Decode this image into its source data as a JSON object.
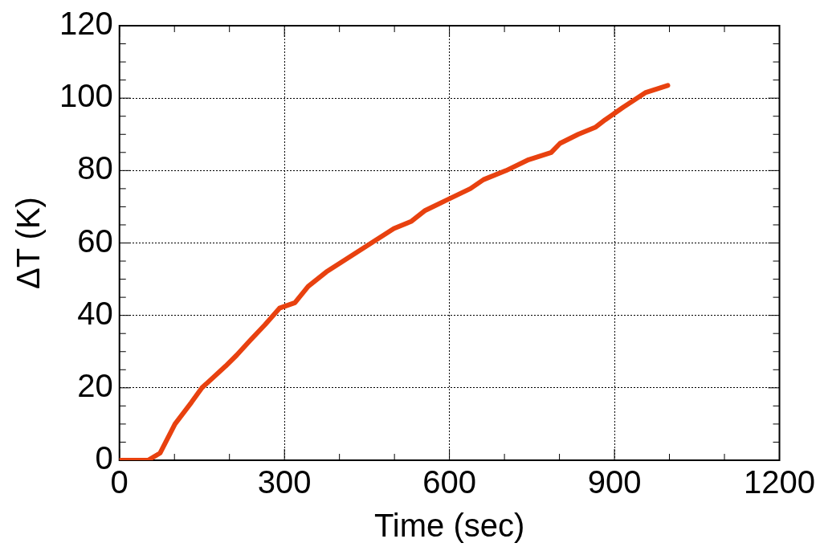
{
  "chart_data": {
    "type": "line",
    "xlabel": "Time (sec)",
    "ylabel": "ΔT (K)",
    "x": [
      0,
      52,
      74,
      101,
      131,
      150,
      193,
      213,
      237,
      265,
      291,
      319,
      343,
      376,
      417,
      458,
      499,
      531,
      556,
      597,
      638,
      662,
      703,
      744,
      785,
      801,
      834,
      866,
      883,
      916,
      956,
      997
    ],
    "series": [
      {
        "color": "#e8410f",
        "values": [
          0,
          0,
          2,
          10,
          16,
          20,
          26,
          29,
          33,
          37.5,
          42,
          43.5,
          48,
          52,
          56,
          60,
          64,
          66,
          69,
          72,
          75,
          77.5,
          80,
          83,
          85,
          87.5,
          90,
          92,
          94,
          97.5,
          101.5,
          103.5
        ]
      }
    ],
    "xlim": [
      0,
      1200
    ],
    "xticks": [
      0,
      300,
      600,
      900,
      1200
    ],
    "ylim": [
      0,
      120
    ],
    "yticks": [
      0,
      20,
      40,
      60,
      80,
      100,
      120
    ],
    "grid": true,
    "line_style": "solid",
    "marker": "none",
    "legend": false
  }
}
